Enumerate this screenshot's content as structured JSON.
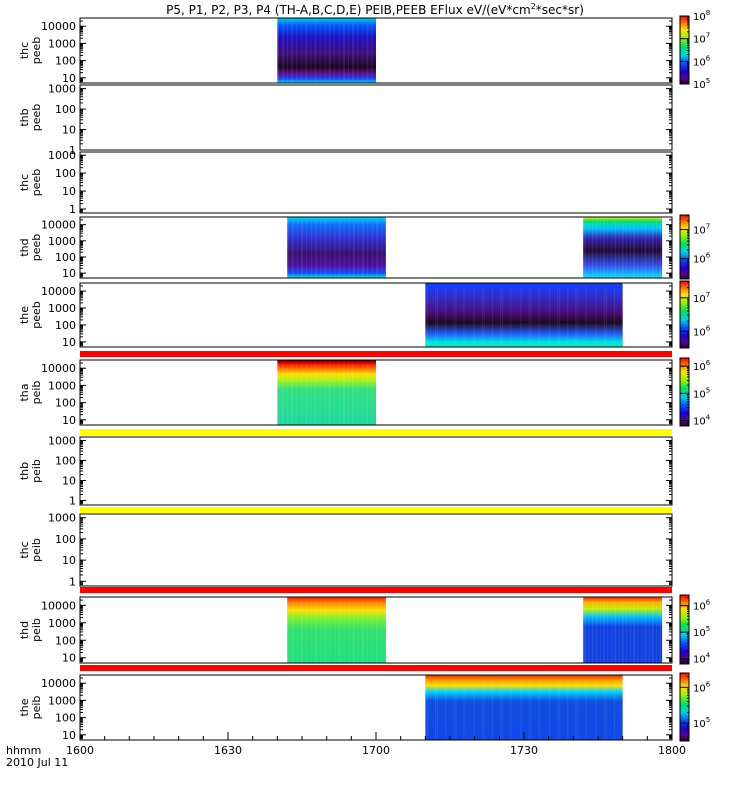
{
  "title": {
    "main": "P5, P1, P2, P3, P4 (TH-A,B,C,D,E) PEIB,PEEB EFlux eV/(eV*cm",
    "sup": "2",
    "tail": "*sec*sr)"
  },
  "bottom": {
    "label_line1": "hhmm",
    "label_line2": "2010 Jul 11"
  },
  "colors": {
    "band_red": "#ff0000",
    "band_yellow": "#ffff00",
    "frame": "#000000"
  },
  "chart_data": {
    "type": "heatmap",
    "x_range": [
      "16:00",
      "18:00"
    ],
    "x_ticks": [
      {
        "value": 0,
        "label": "1600"
      },
      {
        "value": 30,
        "label": "1630"
      },
      {
        "value": 60,
        "label": "1700"
      },
      {
        "value": 90,
        "label": "1730"
      },
      {
        "value": 120,
        "label": "1800"
      }
    ],
    "x_units": "minutes after 16:00 UT",
    "y_scale": "log",
    "y_units": "eV",
    "panels": [
      {
        "ylabel": [
          "thc",
          "peeb"
        ],
        "y_range": [
          5,
          30000
        ],
        "y_ticks": [
          {
            "v": 10,
            "label": "10"
          },
          {
            "v": 100,
            "label": "100"
          },
          {
            "v": 1000,
            "label": "1000"
          },
          {
            "v": 10000,
            "label": "10000"
          }
        ],
        "data_blocks": [
          {
            "start": 40,
            "end": 60,
            "style": "peeb_dense"
          }
        ],
        "colorbar": {
          "min_exp": 5,
          "max_exp": 8,
          "labels": [
            {
              "exp": 5,
              "label": "10",
              "sup": "5"
            },
            {
              "exp": 6,
              "label": "10",
              "sup": "6"
            },
            {
              "exp": 7,
              "label": "10",
              "sup": "7"
            },
            {
              "exp": 8,
              "label": "10",
              "sup": "8"
            }
          ]
        }
      },
      {
        "ylabel": [
          "thb",
          "peeb"
        ],
        "y_range": [
          1,
          1500
        ],
        "y_ticks": [
          {
            "v": 1,
            "label": "1"
          },
          {
            "v": 10,
            "label": "10"
          },
          {
            "v": 100,
            "label": "100"
          },
          {
            "v": 1000,
            "label": "1000"
          }
        ],
        "data_blocks": [],
        "colorbar": null
      },
      {
        "ylabel": [
          "thc",
          "peeb"
        ],
        "y_range": [
          0.6,
          1500
        ],
        "y_ticks": [
          {
            "v": 1,
            "label": "1"
          },
          {
            "v": 10,
            "label": "10"
          },
          {
            "v": 100,
            "label": "100"
          },
          {
            "v": 1000,
            "label": "1000"
          }
        ],
        "data_blocks": [],
        "colorbar": null
      },
      {
        "ylabel": [
          "thd",
          "peeb"
        ],
        "y_range": [
          5,
          30000
        ],
        "y_ticks": [
          {
            "v": 10,
            "label": "10"
          },
          {
            "v": 100,
            "label": "100"
          },
          {
            "v": 1000,
            "label": "1000"
          },
          {
            "v": 10000,
            "label": "10000"
          }
        ],
        "data_blocks": [
          {
            "start": 42,
            "end": 62,
            "style": "peeb"
          },
          {
            "start": 102,
            "end": 118,
            "style": "peeb_rgb"
          }
        ],
        "colorbar": {
          "min_exp": 5.3,
          "max_exp": 7.5,
          "labels": [
            {
              "exp": 6,
              "label": "10",
              "sup": "6"
            },
            {
              "exp": 7,
              "label": "10",
              "sup": "7"
            }
          ]
        }
      },
      {
        "ylabel": [
          "the",
          "peeb"
        ],
        "y_range": [
          5,
          30000
        ],
        "y_ticks": [
          {
            "v": 10,
            "label": "10"
          },
          {
            "v": 100,
            "label": "100"
          },
          {
            "v": 1000,
            "label": "1000"
          },
          {
            "v": 10000,
            "label": "10000"
          }
        ],
        "data_blocks": [
          {
            "start": 70,
            "end": 110,
            "style": "peeb_the"
          }
        ],
        "colorbar": {
          "min_exp": 5.5,
          "max_exp": 7.5,
          "labels": [
            {
              "exp": 6,
              "label": "10",
              "sup": "6"
            },
            {
              "exp": 7,
              "label": "10",
              "sup": "7"
            }
          ]
        }
      },
      {
        "ylabel": [
          "tha",
          "peib"
        ],
        "y_range": [
          5,
          30000
        ],
        "y_ticks": [
          {
            "v": 10,
            "label": "10"
          },
          {
            "v": 100,
            "label": "100"
          },
          {
            "v": 1000,
            "label": "1000"
          },
          {
            "v": 10000,
            "label": "10000"
          }
        ],
        "band_color": "red",
        "data_blocks": [
          {
            "start": 40,
            "end": 60,
            "style": "peib"
          }
        ],
        "colorbar": {
          "min_exp": 3.8,
          "max_exp": 6.3,
          "labels": [
            {
              "exp": 4,
              "label": "10",
              "sup": "4"
            },
            {
              "exp": 5,
              "label": "10",
              "sup": "5"
            },
            {
              "exp": 6,
              "label": "10",
              "sup": "6"
            }
          ]
        }
      },
      {
        "ylabel": [
          "thb",
          "peib"
        ],
        "y_range": [
          0.6,
          1500
        ],
        "y_ticks": [
          {
            "v": 1,
            "label": "1"
          },
          {
            "v": 10,
            "label": "10"
          },
          {
            "v": 100,
            "label": "100"
          },
          {
            "v": 1000,
            "label": "1000"
          }
        ],
        "band_color": "yellow",
        "data_blocks": [],
        "colorbar": null
      },
      {
        "ylabel": [
          "thc",
          "peib"
        ],
        "y_range": [
          0.6,
          1500
        ],
        "y_ticks": [
          {
            "v": 1,
            "label": "1"
          },
          {
            "v": 10,
            "label": "10"
          },
          {
            "v": 100,
            "label": "100"
          },
          {
            "v": 1000,
            "label": "1000"
          }
        ],
        "band_color": "yellow",
        "data_blocks": [],
        "colorbar": null
      },
      {
        "ylabel": [
          "thd",
          "peib"
        ],
        "y_range": [
          5,
          30000
        ],
        "y_ticks": [
          {
            "v": 10,
            "label": "10"
          },
          {
            "v": 100,
            "label": "100"
          },
          {
            "v": 1000,
            "label": "1000"
          },
          {
            "v": 10000,
            "label": "10000"
          }
        ],
        "band_color": "red",
        "data_blocks": [
          {
            "start": 42,
            "end": 62,
            "style": "peib_green"
          },
          {
            "start": 102,
            "end": 118,
            "style": "peib_blue"
          }
        ],
        "colorbar": {
          "min_exp": 3.8,
          "max_exp": 6.4,
          "labels": [
            {
              "exp": 4,
              "label": "10",
              "sup": "4"
            },
            {
              "exp": 5,
              "label": "10",
              "sup": "5"
            },
            {
              "exp": 6,
              "label": "10",
              "sup": "6"
            }
          ]
        }
      },
      {
        "ylabel": [
          "the",
          "peib"
        ],
        "y_range": [
          5,
          30000
        ],
        "y_ticks": [
          {
            "v": 10,
            "label": "10"
          },
          {
            "v": 100,
            "label": "100"
          },
          {
            "v": 1000,
            "label": "1000"
          },
          {
            "v": 10000,
            "label": "10000"
          }
        ],
        "band_color": "red",
        "data_blocks": [
          {
            "start": 70,
            "end": 110,
            "style": "peib_the"
          }
        ],
        "colorbar": {
          "min_exp": 4.5,
          "max_exp": 6.4,
          "labels": [
            {
              "exp": 5,
              "label": "10",
              "sup": "5"
            },
            {
              "exp": 6,
              "label": "10",
              "sup": "6"
            }
          ]
        }
      }
    ]
  }
}
